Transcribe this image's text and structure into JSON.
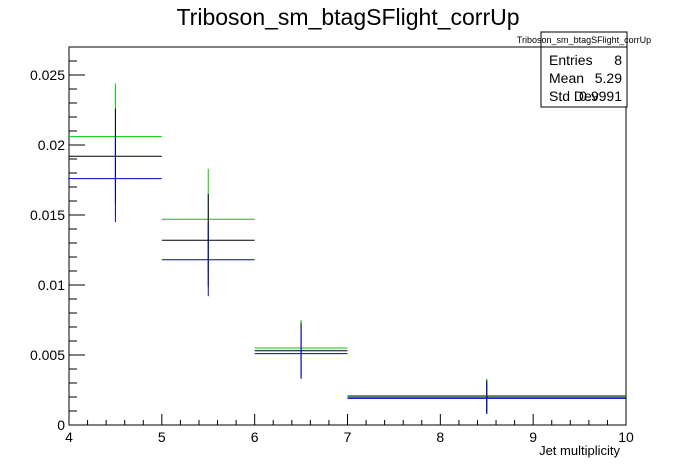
{
  "chart_data": {
    "type": "scatter",
    "title": "Triboson_sm_btagSFlight_corrUp",
    "xlabel": "Jet multiplicity",
    "ylabel": "",
    "xlim": [
      4,
      10
    ],
    "ylim": [
      0,
      0.027
    ],
    "x_ticks": [
      "4",
      "5",
      "6",
      "7",
      "8",
      "9",
      "10"
    ],
    "y_ticks": [
      "0",
      "0.005",
      "0.01",
      "0.015",
      "0.02",
      "0.025"
    ],
    "grid": false,
    "series": [
      {
        "color": "#00cc00",
        "points": [
          {
            "x_lo": 4,
            "x_hi": 5,
            "y": 0.0206,
            "err": 0.0038
          },
          {
            "x_lo": 5,
            "x_hi": 6,
            "y": 0.0147,
            "err": 0.0036
          },
          {
            "x_lo": 6,
            "x_hi": 7,
            "y": 0.0055,
            "err": 0.002
          },
          {
            "x_lo": 7,
            "x_hi": 10,
            "y": 0.0021,
            "err": 0.0012
          }
        ]
      },
      {
        "color": "#000000",
        "points": [
          {
            "x_lo": 4,
            "x_hi": 5,
            "y": 0.0192,
            "err": 0.0034
          },
          {
            "x_lo": 5,
            "x_hi": 6,
            "y": 0.0132,
            "err": 0.0033
          },
          {
            "x_lo": 6,
            "x_hi": 7,
            "y": 0.0053,
            "err": 0.002
          },
          {
            "x_lo": 7,
            "x_hi": 10,
            "y": 0.002,
            "err": 0.0012
          }
        ]
      },
      {
        "color": "#0000cc",
        "points": [
          {
            "x_lo": 4,
            "x_hi": 5,
            "y": 0.0176,
            "err": 0.0031
          },
          {
            "x_lo": 5,
            "x_hi": 6,
            "y": 0.0118,
            "err": 0.0026
          },
          {
            "x_lo": 6,
            "x_hi": 7,
            "y": 0.0051,
            "err": 0.0017
          },
          {
            "x_lo": 7,
            "x_hi": 10,
            "y": 0.0019,
            "err": 0.0011
          }
        ]
      }
    ],
    "stats_box": {
      "title": "Triboson_sm_btagSFlight_corrUp",
      "rows": [
        {
          "label": "Entries",
          "value": "8"
        },
        {
          "label": "Mean",
          "value": "5.29"
        },
        {
          "label": "Std Dev",
          "value": "0.9991"
        }
      ],
      "placement": "top-right"
    }
  }
}
